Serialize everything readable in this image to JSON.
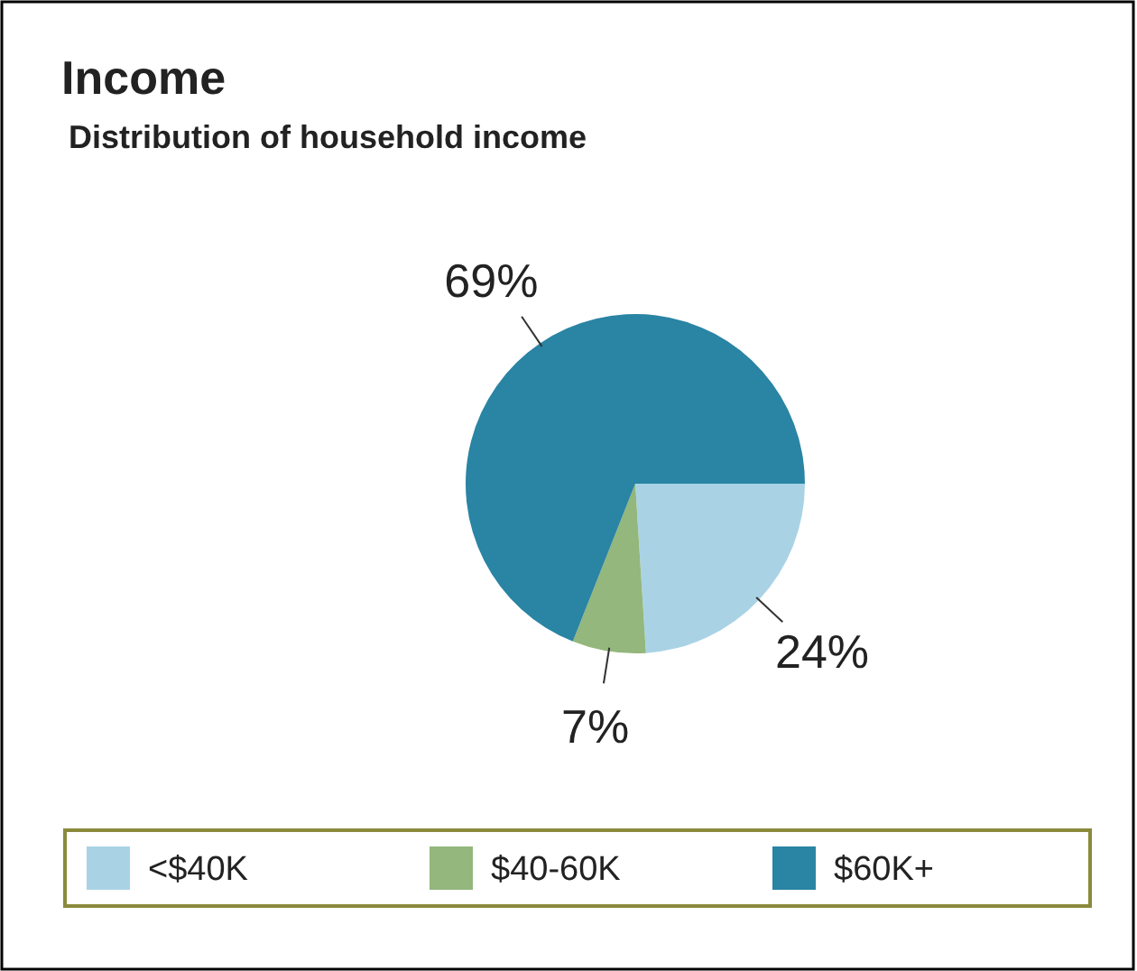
{
  "chart_data": {
    "type": "pie",
    "title": "Income",
    "subtitle": "Distribution of household income",
    "categories": [
      "<$40K",
      "$40-60K",
      "$60K+"
    ],
    "values": [
      24,
      7,
      69
    ],
    "colors": [
      "#a9d3e5",
      "#93b77c",
      "#2a84a3"
    ],
    "legend": "bottom",
    "value_labels": [
      "24%",
      "7%",
      "69%"
    ]
  }
}
